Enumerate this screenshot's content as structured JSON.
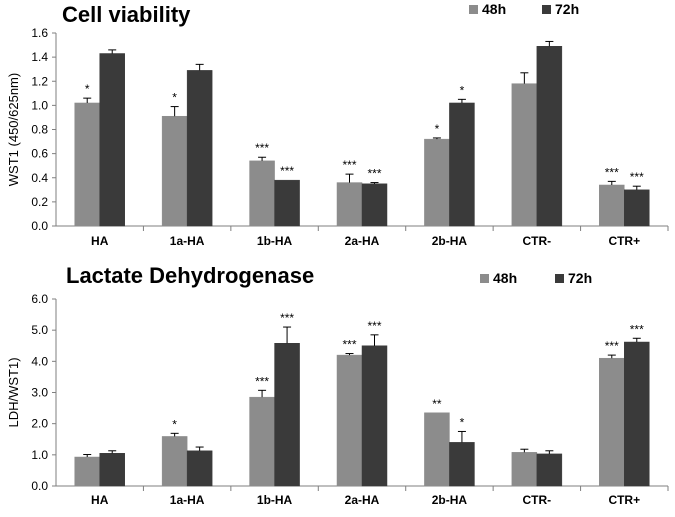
{
  "chart_data": [
    {
      "type": "bar",
      "title": "Cell viability",
      "ylabel": "WST1 (450/625nm)",
      "xlabel": "",
      "ylim": [
        0,
        1.6
      ],
      "yticks": [
        "0.0",
        "0.2",
        "0.4",
        "0.6",
        "0.8",
        "1.0",
        "1.2",
        "1.4",
        "1.6"
      ],
      "ytick_values": [
        0,
        0.2,
        0.4,
        0.6,
        0.8,
        1.0,
        1.2,
        1.4,
        1.6
      ],
      "categories": [
        "HA",
        "1a-HA",
        "1b-HA",
        "2a-HA",
        "2b-HA",
        "CTR-",
        "CTR+"
      ],
      "legend_position": "top-right",
      "series": [
        {
          "name": "48h",
          "color": "#8c8c8c",
          "values": [
            1.02,
            0.91,
            0.54,
            0.36,
            0.72,
            1.18,
            0.34
          ],
          "errors": [
            0.04,
            0.08,
            0.03,
            0.07,
            0.01,
            0.09,
            0.03
          ],
          "significance": [
            "*",
            "*",
            "***",
            "***",
            "*",
            "",
            "***"
          ]
        },
        {
          "name": "72h",
          "color": "#3a3a3a",
          "values": [
            1.43,
            1.29,
            0.38,
            0.35,
            1.02,
            1.49,
            0.3
          ],
          "errors": [
            0.03,
            0.05,
            0.0,
            0.01,
            0.03,
            0.04,
            0.03
          ],
          "significance": [
            "",
            "",
            "***",
            "***",
            "*",
            "",
            "***"
          ]
        }
      ]
    },
    {
      "type": "bar",
      "title": "Lactate Dehydrogenase",
      "ylabel": "LDH/WST1)",
      "xlabel": "",
      "ylim": [
        0,
        6
      ],
      "yticks": [
        "0.0",
        "1.0",
        "2.0",
        "3.0",
        "4.0",
        "5.0",
        "6.0"
      ],
      "ytick_values": [
        0,
        1,
        2,
        3,
        4,
        5,
        6
      ],
      "categories": [
        "HA",
        "1a-HA",
        "1b-HA",
        "2a-HA",
        "2b-HA",
        "CTR-",
        "CTR+"
      ],
      "legend_position": "top-right",
      "series": [
        {
          "name": "48h",
          "color": "#8c8c8c",
          "values": [
            0.93,
            1.59,
            2.85,
            4.2,
            2.35,
            1.08,
            4.1
          ],
          "errors": [
            0.08,
            0.1,
            0.22,
            0.05,
            0.0,
            0.1,
            0.1
          ],
          "significance": [
            "",
            "*",
            "***",
            "***",
            "**",
            "",
            "***"
          ]
        },
        {
          "name": "72h",
          "color": "#3a3a3a",
          "values": [
            1.05,
            1.13,
            4.58,
            4.5,
            1.4,
            1.03,
            4.62
          ],
          "errors": [
            0.08,
            0.12,
            0.52,
            0.35,
            0.35,
            0.1,
            0.12
          ],
          "significance": [
            "",
            "",
            "***",
            "***",
            "*",
            "",
            "***"
          ]
        }
      ]
    }
  ]
}
